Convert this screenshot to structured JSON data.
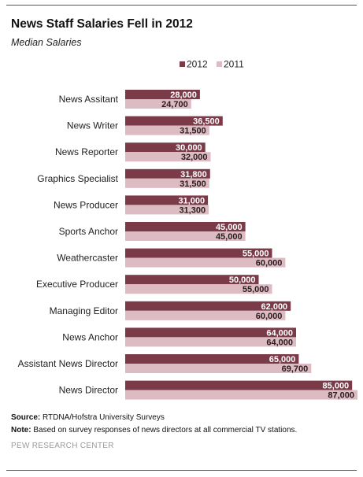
{
  "title": "News Staff Salaries Fell in 2012",
  "subtitle": "Median Salaries",
  "footer": {
    "source_label": "Source:",
    "source_text": " RTDNA/Hofstra  University Surveys",
    "note_label": "Note:",
    "note_text": " Based on survey responses of news directors at all commercial TV stations.",
    "org": "PEW RESEARCH CENTER"
  },
  "colors": {
    "series_2012": "#7a3a48",
    "series_2011": "#dcbcc2"
  },
  "chart_data": {
    "type": "bar",
    "orientation": "horizontal",
    "categories": [
      "News Assitant",
      "News Writer",
      "News Reporter",
      "Graphics Specialist",
      "News Producer",
      "Sports Anchor",
      "Weathercaster",
      "Executive Producer",
      "Managing Editor",
      "News Anchor",
      "Assistant News Director",
      "News Director"
    ],
    "series": [
      {
        "name": "2012",
        "values": [
          28000,
          36500,
          30000,
          31800,
          31000,
          45000,
          55000,
          50000,
          62000,
          64000,
          65000,
          85000
        ],
        "labels": [
          "28,000",
          "36,500",
          "30,000",
          "31,800",
          "31,000",
          "45,000",
          "55,000",
          "50,000",
          "62,000",
          "64,000",
          "65,000",
          "85,000"
        ]
      },
      {
        "name": "2011",
        "values": [
          24700,
          31500,
          32000,
          31500,
          31300,
          45000,
          60000,
          55000,
          60000,
          64000,
          69700,
          87000
        ],
        "labels": [
          "24,700",
          "31,500",
          "32,000",
          "31,500",
          "31,300",
          "45,000",
          "60,000",
          "55,000",
          "60,000",
          "64,000",
          "69,700",
          "87,000"
        ]
      }
    ],
    "legend_position": "top",
    "grid": false,
    "value_axis_range": [
      0,
      87000
    ]
  }
}
